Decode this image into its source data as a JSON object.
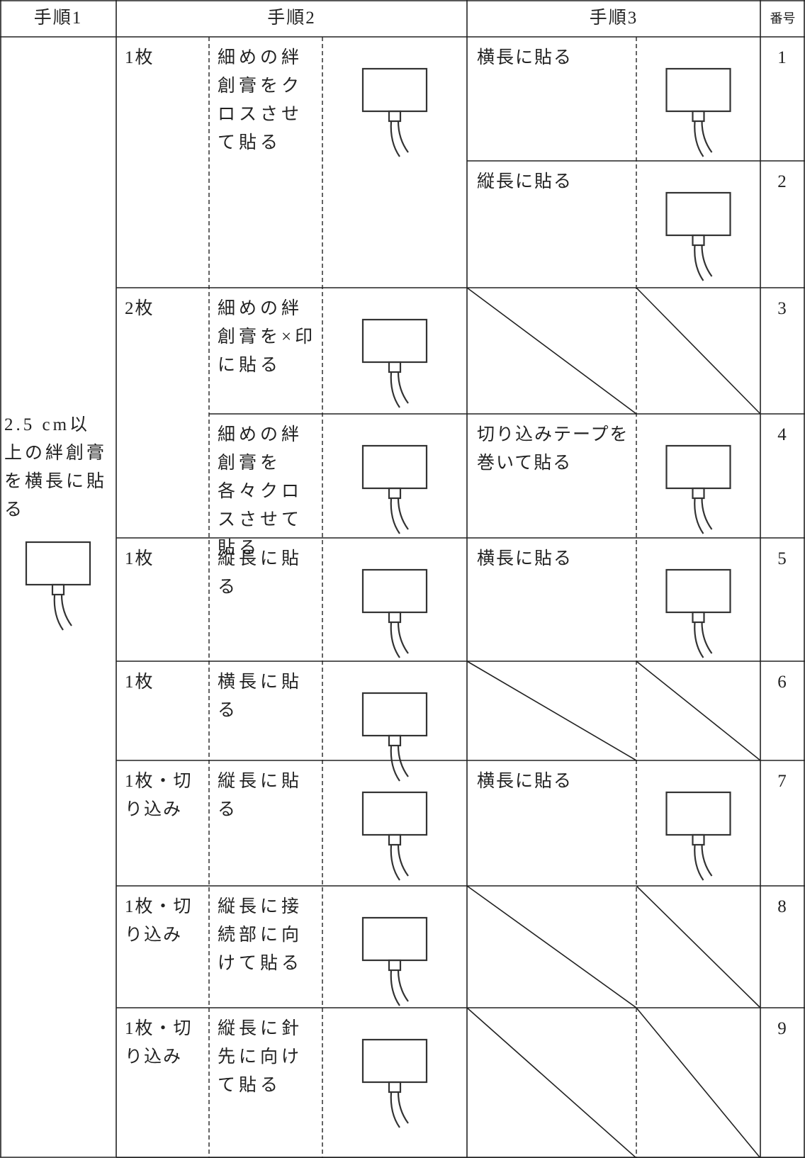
{
  "header": [
    "手順1",
    "手順2",
    "手順3",
    "番号"
  ],
  "step1": "2.5 cm以上の絆創膏を横長に貼る",
  "groups": [
    {
      "count": "1枚",
      "methods": [
        {
          "text": "細めの絆創膏をクロスさせて貼る",
          "step3": [
            {
              "text": "横長に貼る",
              "number": 1
            },
            {
              "text": "縦長に貼る",
              "number": 2
            }
          ]
        }
      ]
    },
    {
      "count": "2枚",
      "methods": [
        {
          "text": "細めの絆創膏を×印に貼る",
          "step3": [
            {
              "number": 3
            }
          ]
        },
        {
          "text": "細めの絆創膏を各々クロスさせて貼る",
          "step3": [
            {
              "text": "切り込みテープを巻いて貼る",
              "number": 4
            }
          ]
        }
      ]
    },
    {
      "count": "1枚",
      "methods": [
        {
          "text": "縦長に貼る",
          "step3": [
            {
              "text": "横長に貼る",
              "number": 5
            }
          ]
        }
      ]
    },
    {
      "count": "1枚",
      "methods": [
        {
          "text": "横長に貼る",
          "step3": [
            {
              "number": 6
            }
          ]
        }
      ]
    },
    {
      "count": "1枚・切り込み",
      "methods": [
        {
          "text": "縦長に貼る",
          "step3": [
            {
              "text": "横長に貼る",
              "number": 7
            }
          ]
        }
      ]
    },
    {
      "count": "1枚・切り込み",
      "methods": [
        {
          "text": "縦長に接続部に向けて貼る",
          "step3": [
            {
              "number": 8
            }
          ]
        }
      ]
    },
    {
      "count": "1枚・切り込み",
      "methods": [
        {
          "text": "縦長に針先に向けて貼る",
          "step3": [
            {
              "number": 9
            }
          ]
        }
      ]
    }
  ]
}
